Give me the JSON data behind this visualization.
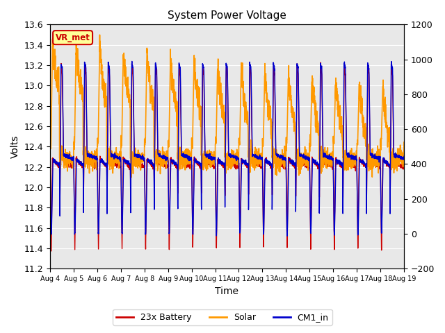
{
  "title": "System Power Voltage",
  "ylabel_left": "Volts",
  "xlabel": "Time",
  "ylim_left": [
    11.2,
    13.6
  ],
  "ylim_right": [
    -200,
    1200
  ],
  "annotation_text": "VR_met",
  "annotation_color": "#cc0000",
  "annotation_bg": "#ffff99",
  "x_tick_labels": [
    "Aug 4",
    "Aug 5",
    "Aug 6",
    "Aug 7",
    "Aug 8",
    "Aug 9",
    "Aug 10",
    "Aug 11",
    "Aug 12",
    "Aug 13",
    "Aug 14",
    "Aug 15",
    "Aug 16",
    "Aug 17",
    "Aug 18",
    "Aug 19"
  ],
  "series": {
    "battery": {
      "label": "23x Battery",
      "color": "#cc0000",
      "linewidth": 1.0
    },
    "solar": {
      "label": "Solar",
      "color": "#ff9900",
      "linewidth": 1.2
    },
    "cm1": {
      "label": "CM1_in",
      "color": "#0000cc",
      "linewidth": 1.0
    }
  },
  "background_color": "#e8e8e8",
  "grid_color": "#ffffff",
  "left_yticks": [
    11.2,
    11.4,
    11.6,
    11.8,
    12.0,
    12.2,
    12.4,
    12.6,
    12.8,
    13.0,
    13.2,
    13.4,
    13.6
  ],
  "right_yticks": [
    -200,
    0,
    200,
    400,
    600,
    800,
    1000,
    1200
  ]
}
